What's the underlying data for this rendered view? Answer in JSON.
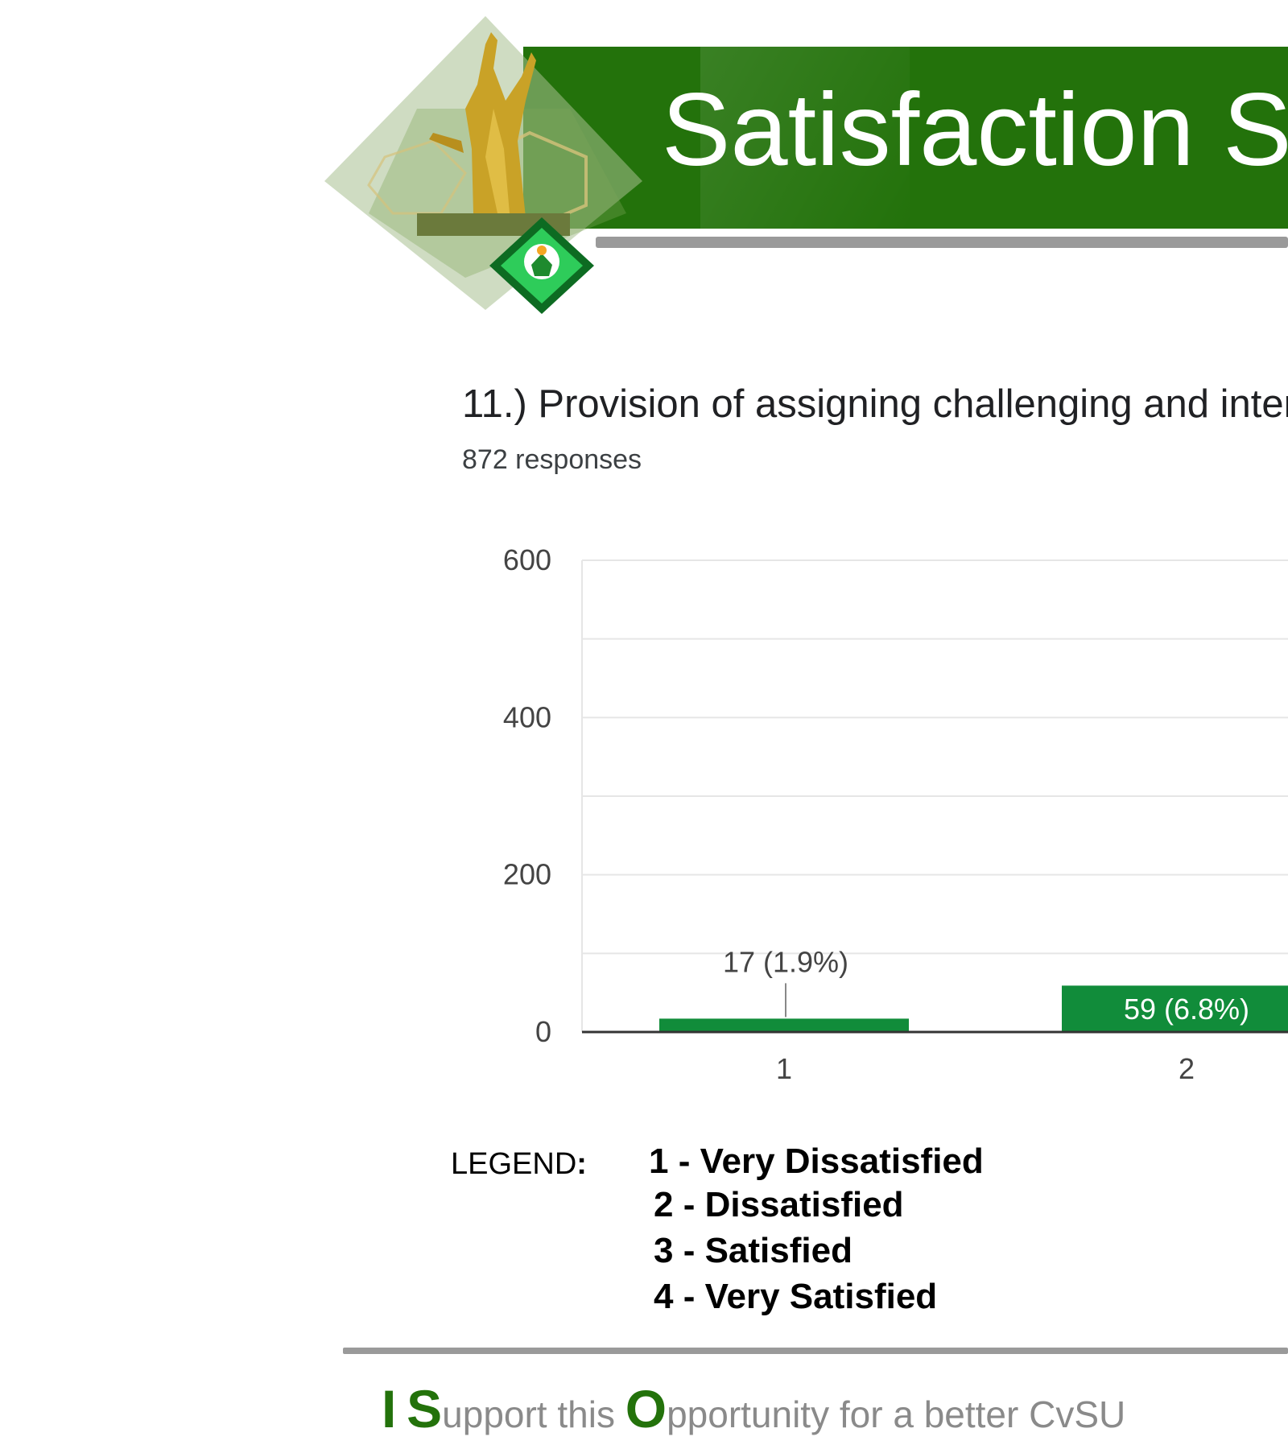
{
  "header": {
    "title": "Satisfaction S"
  },
  "question": {
    "text": "11.) Provision of assigning challenging and intere",
    "responses": "872 responses"
  },
  "chart_data": {
    "type": "bar",
    "categories": [
      "1",
      "2"
    ],
    "values": [
      17,
      59
    ],
    "data_labels": [
      "17 (1.9%)",
      "59 (6.8%)"
    ],
    "ylim": [
      0,
      600
    ],
    "yticks": [
      "0",
      "200",
      "400",
      "600"
    ],
    "grid": true,
    "bar_color": "#118c3a",
    "xlabel": "",
    "ylabel": ""
  },
  "legend": {
    "heading": "LEGEND",
    "colon": ":",
    "items": [
      "1  -  Very Dissatisfied",
      "2 -  Dissatisfied",
      "3 -  Satisfied",
      "4 - Very Satisfied"
    ]
  },
  "footer": {
    "i": "I",
    "s": "S",
    "s_rest": "upport this ",
    "o": "O",
    "o_rest": "pportunity for a better CvSU"
  },
  "colors": {
    "banner_green": "#23720b",
    "bar_green": "#118c3a",
    "accent_green": "#23720b"
  }
}
